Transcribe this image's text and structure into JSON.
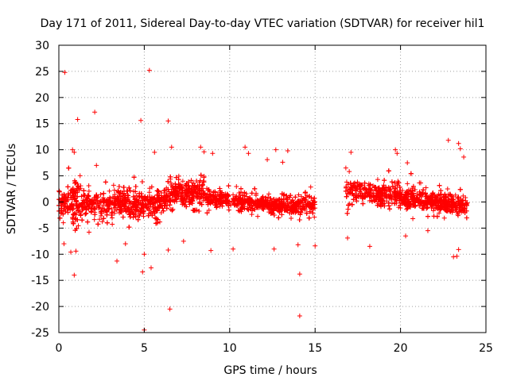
{
  "chart_data": {
    "type": "scatter",
    "title": "Day 171 of 2011, Sidereal Day-to-day VTEC variation (SDTVAR) for receiver hil1",
    "xlabel": "GPS time / hours",
    "ylabel": "SDTVAR / TECUs",
    "xlim": [
      0,
      25
    ],
    "ylim": [
      -25,
      30
    ],
    "xticks": [
      0,
      5,
      10,
      15,
      20,
      25
    ],
    "yticks": [
      -25,
      -20,
      -15,
      -10,
      -5,
      0,
      5,
      10,
      15,
      20,
      25,
      30
    ],
    "grid": true,
    "marker": "+",
    "color": "#ff0000",
    "gaps": [
      [
        15.0,
        16.8
      ]
    ],
    "outliers": [
      {
        "x": 0.35,
        "y": 24.8
      },
      {
        "x": 5.3,
        "y": 25.2
      },
      {
        "x": 2.1,
        "y": 17.2
      },
      {
        "x": 1.1,
        "y": 15.8
      },
      {
        "x": 4.8,
        "y": 15.6
      },
      {
        "x": 6.4,
        "y": 15.5
      },
      {
        "x": 0.8,
        "y": 10.0
      },
      {
        "x": 0.9,
        "y": 9.5
      },
      {
        "x": 5.6,
        "y": 9.5
      },
      {
        "x": 6.6,
        "y": 10.5
      },
      {
        "x": 8.3,
        "y": 10.5
      },
      {
        "x": 8.5,
        "y": 9.6
      },
      {
        "x": 9.0,
        "y": 9.3
      },
      {
        "x": 10.9,
        "y": 10.5
      },
      {
        "x": 11.1,
        "y": 9.3
      },
      {
        "x": 12.7,
        "y": 10.0
      },
      {
        "x": 13.4,
        "y": 9.8
      },
      {
        "x": 17.1,
        "y": 9.5
      },
      {
        "x": 19.7,
        "y": 10.0
      },
      {
        "x": 19.8,
        "y": 9.3
      },
      {
        "x": 22.8,
        "y": 11.8
      },
      {
        "x": 23.4,
        "y": 11.2
      },
      {
        "x": 23.5,
        "y": 10.2
      },
      {
        "x": 23.7,
        "y": 8.6
      },
      {
        "x": 2.2,
        "y": 7.0
      },
      {
        "x": 12.2,
        "y": 8.1
      },
      {
        "x": 13.1,
        "y": 7.6
      },
      {
        "x": 16.8,
        "y": 6.5
      },
      {
        "x": 20.4,
        "y": 7.5
      },
      {
        "x": 0.9,
        "y": -14.0
      },
      {
        "x": 5.0,
        "y": -24.5
      },
      {
        "x": 4.9,
        "y": -13.4
      },
      {
        "x": 5.4,
        "y": -12.6
      },
      {
        "x": 6.5,
        "y": -20.5
      },
      {
        "x": 14.1,
        "y": -21.8
      },
      {
        "x": 14.1,
        "y": -13.8
      },
      {
        "x": 3.4,
        "y": -11.3
      },
      {
        "x": 0.7,
        "y": -9.6
      },
      {
        "x": 1.0,
        "y": -9.4
      },
      {
        "x": 5.0,
        "y": -10.0
      },
      {
        "x": 6.4,
        "y": -9.2
      },
      {
        "x": 8.9,
        "y": -9.3
      },
      {
        "x": 10.2,
        "y": -9.0
      },
      {
        "x": 12.6,
        "y": -9.0
      },
      {
        "x": 15.0,
        "y": -8.4
      },
      {
        "x": 18.2,
        "y": -8.5
      },
      {
        "x": 23.1,
        "y": -10.5
      },
      {
        "x": 23.3,
        "y": -10.4
      },
      {
        "x": 23.4,
        "y": -9.1
      },
      {
        "x": 0.3,
        "y": -8.0
      },
      {
        "x": 3.9,
        "y": -8.0
      },
      {
        "x": 7.3,
        "y": -7.5
      },
      {
        "x": 14.0,
        "y": -8.2
      },
      {
        "x": 16.9,
        "y": -6.9
      },
      {
        "x": 20.3,
        "y": -6.5
      },
      {
        "x": 21.6,
        "y": -5.5
      }
    ]
  }
}
